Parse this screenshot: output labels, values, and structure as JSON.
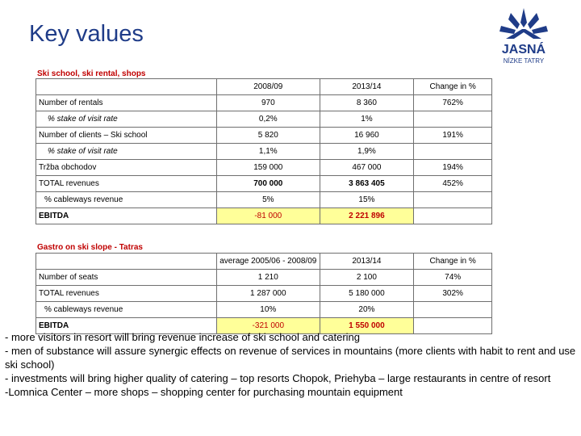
{
  "title": "Key values",
  "logo": {
    "name": "JASNÁ",
    "sub": "NÍZKE TATRY"
  },
  "section1": {
    "label": "Ski school, ski rental, shops",
    "headers": [
      "2008/09",
      "2013/14",
      "Change in %"
    ],
    "rows": [
      {
        "label": "Number of rentals",
        "v1": "970",
        "v2": "8 360",
        "v3": "762%"
      },
      {
        "label": "% stake of visit rate",
        "v1": "0,2%",
        "v2": "1%",
        "v3": ""
      },
      {
        "label": "Number of clients – Ski school",
        "v1": "5 820",
        "v2": "16 960",
        "v3": "191%"
      },
      {
        "label": "% stake of visit rate",
        "v1": "1,1%",
        "v2": "1,9%",
        "v3": ""
      },
      {
        "label": "Tržba obchodov",
        "v1": "159 000",
        "v2": "467 000",
        "v3": "194%"
      },
      {
        "label": "TOTAL revenues",
        "v1": "700 000",
        "v2": "3 863 405",
        "v3": "452%"
      },
      {
        "label": "% cableways revenue",
        "v1": "5%",
        "v2": "15%",
        "v3": ""
      },
      {
        "label": "EBITDA",
        "v1": "-81 000",
        "v2": "2 221 896",
        "v3": ""
      }
    ]
  },
  "section2": {
    "label": "Gastro on ski slope - Tatras",
    "headers": [
      "average 2005/06 - 2008/09",
      "2013/14",
      "Change in %"
    ],
    "rows": [
      {
        "label": "Number of seats",
        "v1": "1 210",
        "v2": "2 100",
        "v3": "74%"
      },
      {
        "label": "TOTAL revenues",
        "v1": "1 287 000",
        "v2": "5 180 000",
        "v3": "302%"
      },
      {
        "label": "% cableways revenue",
        "v1": "10%",
        "v2": "20%",
        "v3": ""
      },
      {
        "label": "EBITDA",
        "v1": "-321 000",
        "v2": "1 550 000",
        "v3": ""
      }
    ]
  },
  "notes": [
    "- more visitors in resort will bring revenue increase of ski school and catering",
    "- men of substance will assure synergic effects on revenue of services in mountains (more clients with habit to rent and use ski school)",
    "- investments will bring higher quality of catering –  top resorts Chopok, Priehyba  – large restaurants in centre of resort",
    "-Lomnica Center – more shops – shopping center for purchasing mountain equipment"
  ],
  "colors": {
    "title": "#1f3c88",
    "section_label": "#c00000",
    "highlight": "#ffff99"
  }
}
